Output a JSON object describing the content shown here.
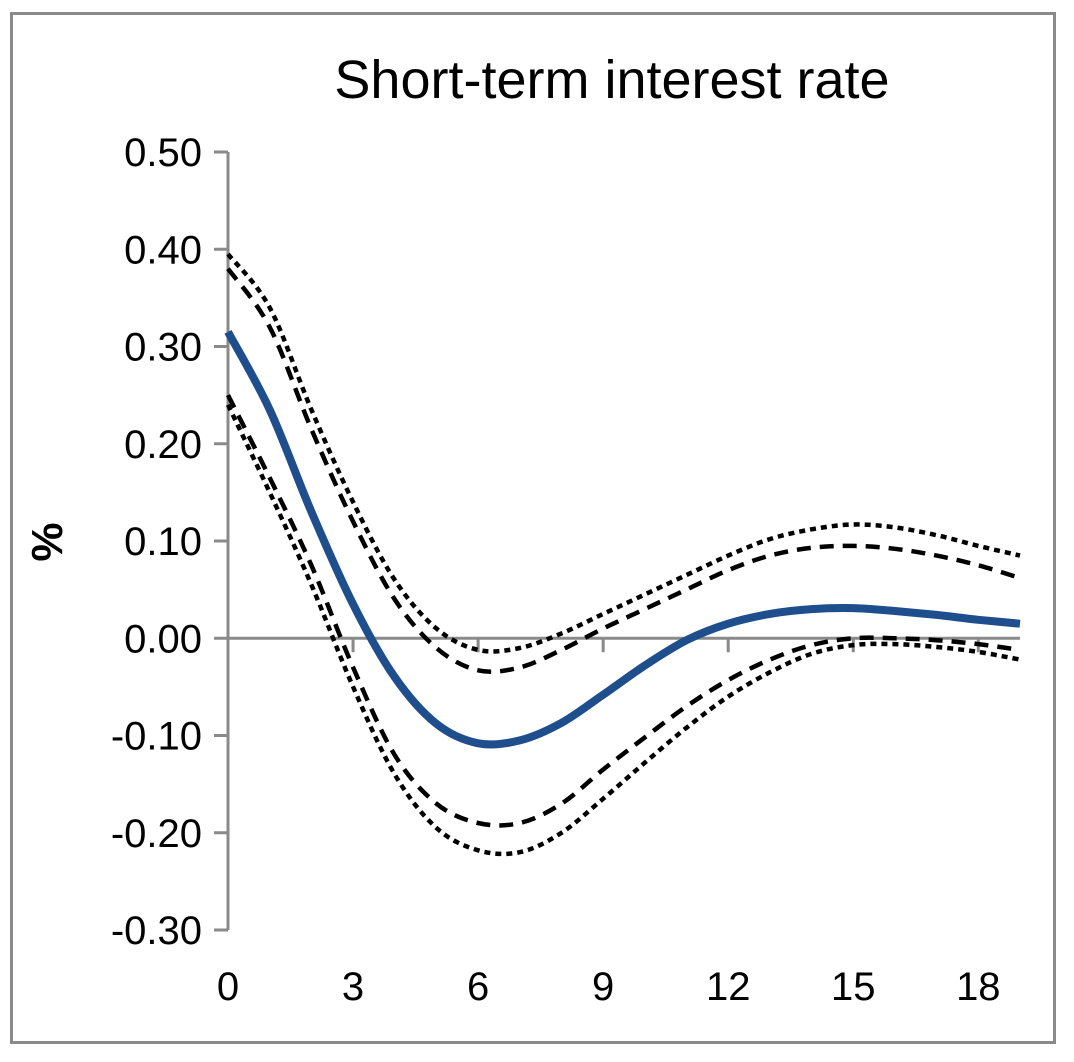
{
  "chart_data": {
    "type": "line",
    "title": "Short-term interest rate",
    "xlabel": "",
    "ylabel": "%",
    "xlim": [
      0,
      19
    ],
    "ylim": [
      -0.3,
      0.5
    ],
    "x_ticks": [
      0,
      3,
      6,
      9,
      12,
      15,
      18
    ],
    "x_tick_labels": [
      "0",
      "3",
      "6",
      "9",
      "12",
      "15",
      "18"
    ],
    "y_ticks": [
      0.5,
      0.4,
      0.3,
      0.2,
      0.1,
      0.0,
      -0.1,
      -0.2,
      -0.3
    ],
    "y_tick_labels": [
      "0.50",
      "0.40",
      "0.30",
      "0.20",
      "0.10",
      "0.00",
      "-0.10",
      "-0.20",
      "-0.30"
    ],
    "grid": false,
    "legend": "none",
    "x": [
      0,
      1,
      2,
      3,
      4,
      5,
      6,
      7,
      8,
      9,
      10,
      11,
      12,
      13,
      14,
      15,
      16,
      17,
      18,
      19
    ],
    "series": [
      {
        "style": "solid",
        "color": "#1f4e8c",
        "values": [
          0.315,
          0.235,
          0.13,
          0.035,
          -0.04,
          -0.088,
          -0.108,
          -0.105,
          -0.087,
          -0.058,
          -0.028,
          -0.002,
          0.015,
          0.025,
          0.03,
          0.031,
          0.028,
          0.024,
          0.019,
          0.015
        ]
      },
      {
        "style": "dotted",
        "color": "#000000",
        "values": [
          0.395,
          0.34,
          0.235,
          0.14,
          0.06,
          0.01,
          -0.012,
          -0.01,
          0.005,
          0.025,
          0.045,
          0.065,
          0.085,
          0.102,
          0.112,
          0.117,
          0.114,
          0.106,
          0.095,
          0.085
        ]
      },
      {
        "style": "dashed",
        "color": "#000000",
        "values": [
          0.38,
          0.32,
          0.215,
          0.12,
          0.04,
          -0.01,
          -0.033,
          -0.03,
          -0.012,
          0.01,
          0.03,
          0.05,
          0.07,
          0.085,
          0.093,
          0.095,
          0.092,
          0.085,
          0.075,
          0.062
        ]
      },
      {
        "style": "dashed",
        "color": "#000000",
        "values": [
          0.25,
          0.165,
          0.075,
          -0.03,
          -0.12,
          -0.17,
          -0.19,
          -0.19,
          -0.17,
          -0.135,
          -0.102,
          -0.07,
          -0.043,
          -0.022,
          -0.007,
          0.0,
          0.0,
          -0.002,
          -0.006,
          -0.012
        ]
      },
      {
        "style": "dotted",
        "color": "#000000",
        "values": [
          0.24,
          0.15,
          0.055,
          -0.05,
          -0.14,
          -0.195,
          -0.218,
          -0.22,
          -0.2,
          -0.165,
          -0.128,
          -0.092,
          -0.06,
          -0.035,
          -0.016,
          -0.007,
          -0.006,
          -0.009,
          -0.014,
          -0.022
        ]
      }
    ]
  }
}
